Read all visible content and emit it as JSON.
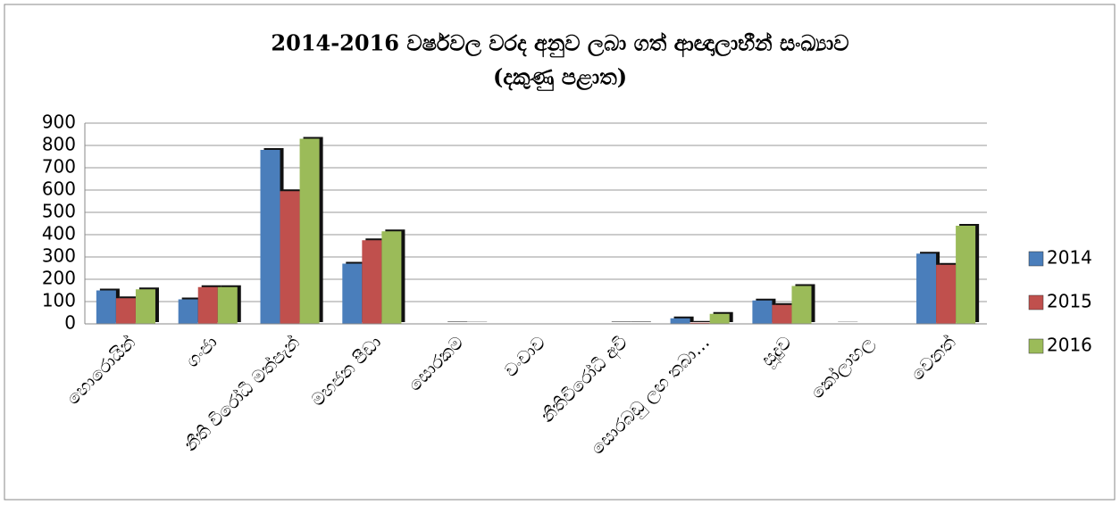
{
  "chart_data": {
    "type": "bar",
    "title": "2014-2016 වර්ෂවල වරද අනුව ලබා ගත් ආඥාලාභීන් සංඛ්‍යාව",
    "subtitle": "(දකුණු පළාත)",
    "categories": [
      "හොරොයින්",
      "ගංජා",
      "නීති විරෝධී මත්පැන්",
      "මහජන පීඩා",
      "සොරකම",
      "වංචාව",
      "නීතිවිරෝධී අවි",
      "සොරබඩු ලඟ තබා…",
      "සූදුව",
      "කෝලාහල",
      "වෙනත්"
    ],
    "series": [
      {
        "name": "2014",
        "color": "#4a7ebb",
        "values": [
          150,
          110,
          780,
          270,
          0,
          0,
          0,
          25,
          105,
          1,
          315
        ]
      },
      {
        "name": "2015",
        "color": "#c0504d",
        "values": [
          115,
          165,
          595,
          375,
          2,
          0,
          2,
          5,
          85,
          0,
          265
        ]
      },
      {
        "name": "2016",
        "color": "#9bbb59",
        "values": [
          155,
          165,
          830,
          415,
          1,
          0,
          2,
          45,
          170,
          0,
          440
        ]
      }
    ],
    "ylim": [
      0,
      900
    ],
    "yticks": [
      0,
      100,
      200,
      300,
      400,
      500,
      600,
      700,
      800,
      900
    ],
    "grid": true,
    "legend": "right"
  }
}
